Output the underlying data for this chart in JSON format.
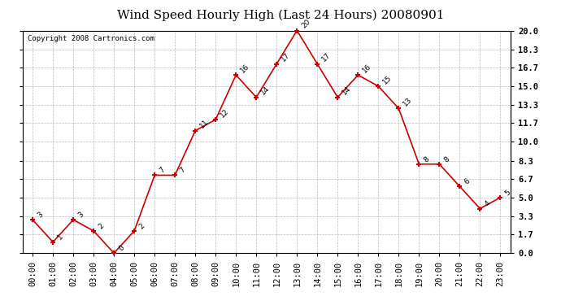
{
  "title": "Wind Speed Hourly High (Last 24 Hours) 20080901",
  "copyright": "Copyright 2008 Cartronics.com",
  "hours": [
    "00:00",
    "01:00",
    "02:00",
    "03:00",
    "04:00",
    "05:00",
    "06:00",
    "07:00",
    "08:00",
    "09:00",
    "10:00",
    "11:00",
    "12:00",
    "13:00",
    "14:00",
    "15:00",
    "16:00",
    "17:00",
    "18:00",
    "19:00",
    "20:00",
    "21:00",
    "22:00",
    "23:00"
  ],
  "values": [
    3,
    1,
    3,
    2,
    0,
    2,
    7,
    7,
    11,
    12,
    16,
    14,
    17,
    20,
    17,
    14,
    16,
    15,
    13,
    8,
    8,
    6,
    4,
    5
  ],
  "line_color": "#cc0000",
  "marker_color": "#cc0000",
  "bg_color": "#ffffff",
  "grid_color": "#bbbbbb",
  "ylim": [
    0,
    20
  ],
  "yticks": [
    0.0,
    1.7,
    3.3,
    5.0,
    6.7,
    8.3,
    10.0,
    11.7,
    13.3,
    15.0,
    16.7,
    18.3,
    20.0
  ],
  "title_fontsize": 11,
  "label_fontsize": 7.5,
  "copyright_fontsize": 6.5,
  "annot_fontsize": 6.5
}
